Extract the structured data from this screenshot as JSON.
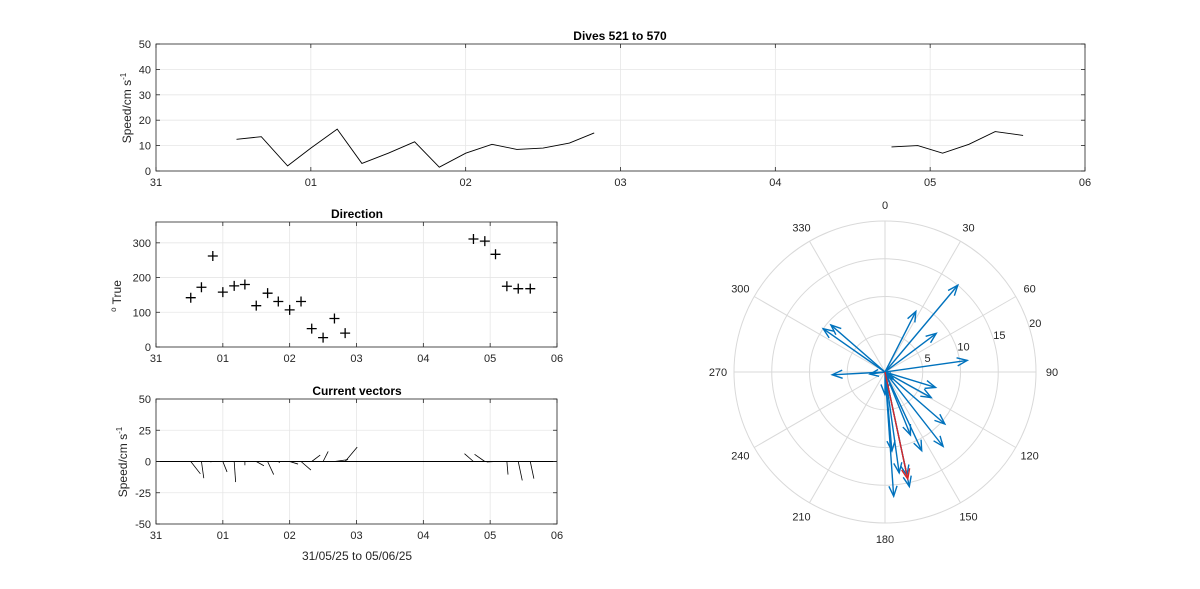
{
  "chart_data": [
    {
      "id": "speed",
      "type": "line",
      "title": "Dives 521 to 570",
      "ylabel": "Speed/cm s",
      "ylabel_sup": "-1",
      "xlim": [
        0,
        6
      ],
      "ylim": [
        0,
        50
      ],
      "yticks": [
        0,
        10,
        20,
        30,
        40,
        50
      ],
      "xticks": [
        0,
        1,
        2,
        3,
        4,
        5,
        6
      ],
      "xticklabels": [
        "31",
        "01",
        "02",
        "03",
        "04",
        "05",
        "06"
      ],
      "grid": true,
      "line_color": "#000000",
      "segments": [
        [
          [
            0.52,
            12.5
          ],
          [
            0.68,
            13.5
          ],
          [
            0.85,
            2
          ],
          [
            1.0,
            9
          ],
          [
            1.17,
            16.5
          ],
          [
            1.33,
            3
          ],
          [
            1.5,
            7
          ],
          [
            1.67,
            11.5
          ],
          [
            1.83,
            1.5
          ],
          [
            2.0,
            7
          ],
          [
            2.17,
            10.5
          ],
          [
            2.33,
            8.5
          ],
          [
            2.5,
            9
          ],
          [
            2.67,
            11
          ],
          [
            2.83,
            15
          ]
        ],
        [
          [
            4.75,
            9.5
          ],
          [
            4.92,
            10
          ],
          [
            5.08,
            7
          ],
          [
            5.25,
            10.5
          ],
          [
            5.42,
            15.5
          ],
          [
            5.6,
            14
          ]
        ]
      ]
    },
    {
      "id": "direction",
      "type": "scatter",
      "title": "Direction",
      "ylabel": "True",
      "ylabel_sup": "o",
      "xlim": [
        0,
        6
      ],
      "ylim": [
        0,
        360
      ],
      "yticks": [
        0,
        100,
        200,
        300
      ],
      "xticks": [
        0,
        1,
        2,
        3,
        4,
        5,
        6
      ],
      "xticklabels": [
        "31",
        "01",
        "02",
        "03",
        "04",
        "05",
        "06"
      ],
      "grid": true,
      "marker": "+",
      "points": [
        [
          0.52,
          142
        ],
        [
          0.68,
          172
        ],
        [
          0.85,
          262
        ],
        [
          1.0,
          158
        ],
        [
          1.17,
          176
        ],
        [
          1.33,
          180
        ],
        [
          1.5,
          119
        ],
        [
          1.67,
          155
        ],
        [
          1.83,
          131
        ],
        [
          2.0,
          107
        ],
        [
          2.17,
          131
        ],
        [
          2.33,
          53
        ],
        [
          2.5,
          27
        ],
        [
          2.67,
          82
        ],
        [
          2.83,
          40
        ],
        [
          4.75,
          311
        ],
        [
          4.92,
          305
        ],
        [
          5.08,
          267
        ],
        [
          5.25,
          175
        ],
        [
          5.42,
          168
        ],
        [
          5.6,
          168
        ]
      ]
    },
    {
      "id": "vectors",
      "type": "vector",
      "title": "Current vectors",
      "ylabel": "Speed/cm s",
      "ylabel_sup": "-1",
      "xlabel": "31/05/25 to 05/06/25",
      "xlim": [
        0,
        6
      ],
      "ylim": [
        -50,
        50
      ],
      "yticks": [
        -50,
        -25,
        0,
        25,
        50
      ],
      "xticks": [
        0,
        1,
        2,
        3,
        4,
        5,
        6
      ],
      "xticklabels": [
        "31",
        "01",
        "02",
        "03",
        "04",
        "05",
        "06"
      ],
      "grid": true,
      "vectors": [
        [
          0.52,
          12.5,
          142
        ],
        [
          0.68,
          13.5,
          172
        ],
        [
          0.85,
          2,
          262
        ],
        [
          1.0,
          9,
          158
        ],
        [
          1.17,
          16.5,
          176
        ],
        [
          1.33,
          3,
          180
        ],
        [
          1.5,
          7,
          119
        ],
        [
          1.67,
          11.5,
          155
        ],
        [
          1.83,
          1.5,
          131
        ],
        [
          2.0,
          7,
          107
        ],
        [
          2.17,
          10.5,
          131
        ],
        [
          2.33,
          8.5,
          53
        ],
        [
          2.5,
          9,
          27
        ],
        [
          2.67,
          11,
          82
        ],
        [
          2.83,
          15,
          40
        ],
        [
          4.75,
          9.5,
          311
        ],
        [
          4.92,
          10,
          305
        ],
        [
          5.08,
          7,
          267
        ],
        [
          5.25,
          10.5,
          175
        ],
        [
          5.42,
          15.5,
          168
        ],
        [
          5.6,
          14,
          168
        ]
      ]
    },
    {
      "id": "polar",
      "type": "polar",
      "rmax": 20,
      "rticks": [
        5,
        10,
        15,
        20
      ],
      "rticklabels": [
        "5",
        "10",
        "15",
        "20"
      ],
      "thetaticks": [
        0,
        30,
        60,
        90,
        120,
        150,
        180,
        210,
        240,
        270,
        300,
        330
      ],
      "thetaticklabels": [
        "0",
        "30",
        "60",
        "90",
        "120",
        "150",
        "180",
        "210",
        "240",
        "270",
        "300",
        "330"
      ],
      "arrow_color": "#0072bd",
      "mean_color": "#d62728",
      "mean_vector": [
        168,
        14.5
      ],
      "vectors": [
        [
          142,
          12.5
        ],
        [
          172,
          13.5
        ],
        [
          262,
          2
        ],
        [
          158,
          9
        ],
        [
          176,
          16.5
        ],
        [
          180,
          3
        ],
        [
          119,
          7
        ],
        [
          155,
          11.5
        ],
        [
          131,
          1.5
        ],
        [
          107,
          7
        ],
        [
          131,
          10.5
        ],
        [
          53,
          8.5
        ],
        [
          27,
          9
        ],
        [
          82,
          11
        ],
        [
          40,
          15
        ],
        [
          311,
          9.5
        ],
        [
          305,
          10
        ],
        [
          267,
          7
        ],
        [
          175,
          10.5
        ],
        [
          168,
          15.5
        ],
        [
          168,
          14
        ]
      ]
    }
  ]
}
